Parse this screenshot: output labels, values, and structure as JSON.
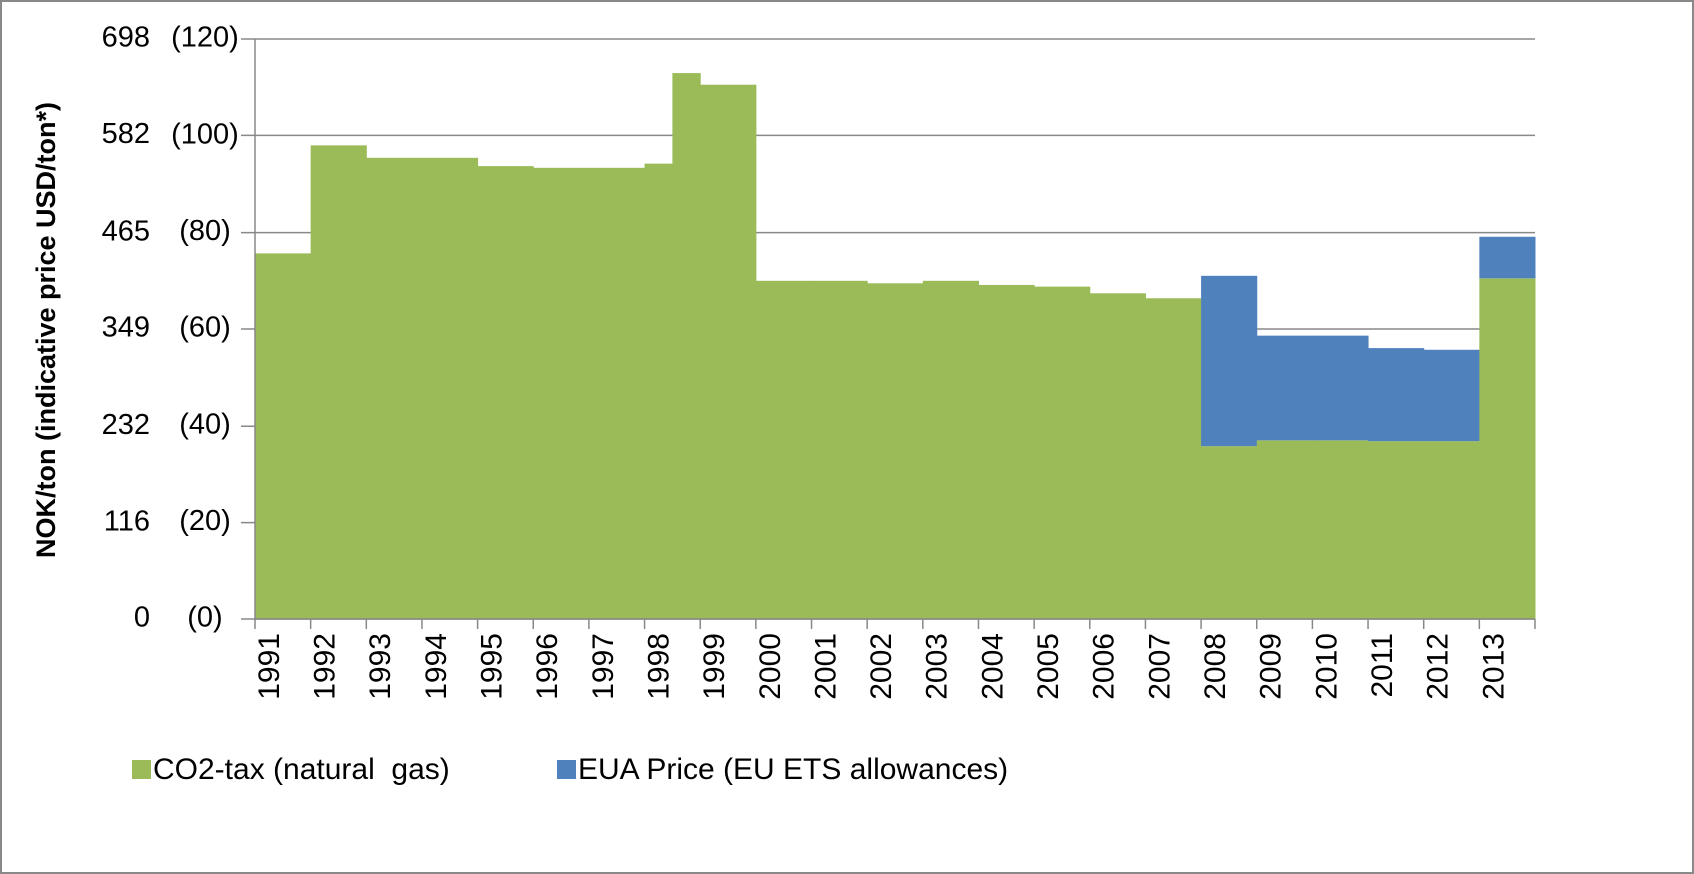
{
  "chart_data": {
    "type": "step-stacked-area",
    "y_label": "NOK/ton (indicative price USD/ton*)",
    "x": [
      1991,
      1992,
      1993,
      1994,
      1995,
      1996,
      1997,
      1998,
      1998.5,
      1999,
      2000,
      2001,
      2002,
      2003,
      2004,
      2005,
      2006,
      2007,
      2008,
      2009,
      2010,
      2011,
      2012,
      2013
    ],
    "xlim": [
      1991,
      2014
    ],
    "xticks": [
      1991,
      1992,
      1993,
      1994,
      1995,
      1996,
      1997,
      1998,
      1999,
      2000,
      2001,
      2002,
      2003,
      2004,
      2005,
      2006,
      2007,
      2008,
      2009,
      2010,
      2011,
      2012,
      2013
    ],
    "ylim": [
      0,
      698
    ],
    "yticks": [
      0,
      116,
      232,
      349,
      465,
      582,
      698
    ],
    "y2lim": [
      0,
      120
    ],
    "y2ticks": [
      {
        "value": 0,
        "label": "(0)"
      },
      {
        "value": 20,
        "label": "(20)"
      },
      {
        "value": 40,
        "label": "(40)"
      },
      {
        "value": 60,
        "label": "(60)"
      },
      {
        "value": 80,
        "label": "(80)"
      },
      {
        "value": 100,
        "label": "(100)"
      },
      {
        "value": 120,
        "label": "(120)"
      }
    ],
    "grid": true,
    "legend": "bottom",
    "series": [
      {
        "name": "CO2-tax (natural  gas)",
        "color": "#9bbb59",
        "values": [
          440,
          570,
          555,
          555,
          545,
          543,
          543,
          548,
          657,
          643,
          407,
          407,
          404,
          407,
          402,
          400,
          392,
          386,
          208,
          215,
          215,
          214,
          214,
          410
        ]
      },
      {
        "name": "EUA Price (EU ETS allowances)",
        "color": "#4f81bd",
        "values": [
          null,
          null,
          null,
          null,
          null,
          null,
          null,
          null,
          null,
          null,
          null,
          null,
          null,
          null,
          null,
          null,
          null,
          null,
          205,
          126,
          126,
          112,
          110,
          50
        ]
      }
    ]
  }
}
